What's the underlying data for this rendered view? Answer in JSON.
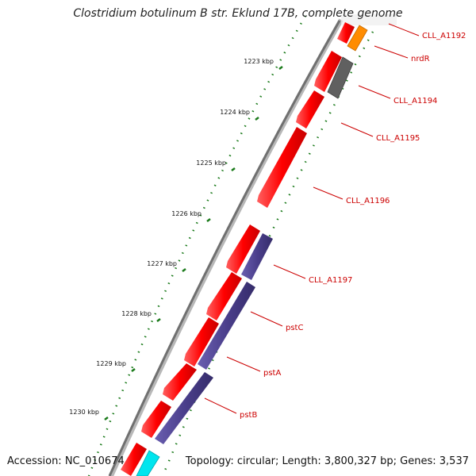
{
  "title": "Clostridium botulinum B str. Eklund 17B, complete genome",
  "accession": "Accession: NC_010674",
  "summary": "Topology: circular; Length: 3,800,327 bp; Genes: 3,537",
  "colors": {
    "backbone": "#808080",
    "gene_red": "#ff0000",
    "gene_orange": "#ff8c00",
    "gene_gray": "#606060",
    "gene_purple": "#4b3f8c",
    "gene_cyan": "#00e5ee",
    "tick_green": "#1a7a1a",
    "label_red": "#cc0000"
  },
  "ticks": [
    {
      "label": "1223 kbp"
    },
    {
      "label": "1224 kbp"
    },
    {
      "label": "1225 kbp"
    },
    {
      "label": "1226 kbp"
    },
    {
      "label": "1227 kbp"
    },
    {
      "label": "1228 kbp"
    },
    {
      "label": "1229 kbp"
    },
    {
      "label": "1230 kbp"
    }
  ],
  "genes": [
    {
      "label": "CLL_A1192",
      "color": "orange"
    },
    {
      "label": "nrdR",
      "color": "gray"
    },
    {
      "label": "CLL_A1194",
      "color": "red"
    },
    {
      "label": "CLL_A1195",
      "color": "red"
    },
    {
      "label": "CLL_A1196",
      "color": "red"
    },
    {
      "label": "CLL_A1197",
      "color": "purple"
    },
    {
      "label": "pstC",
      "color": "red"
    },
    {
      "label": "pstA",
      "color": "red"
    },
    {
      "label": "pstB",
      "color": "red"
    }
  ]
}
